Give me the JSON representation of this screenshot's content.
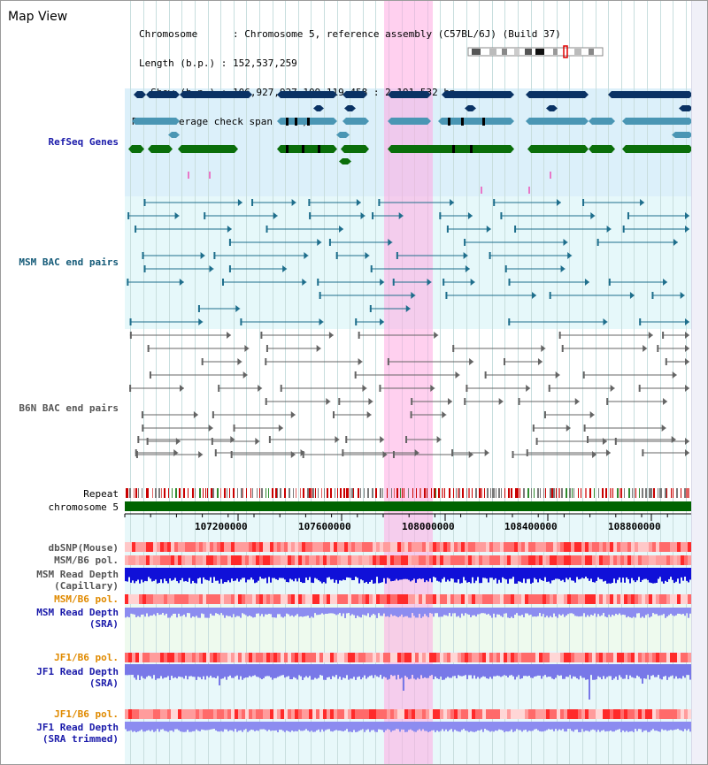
{
  "page": {
    "title": "Map View",
    "info_lines": [
      "Chromosome      : Chromosome 5, reference assembly (C57BL/6J) (Build 37)",
      "Length (b.p.) : 152,537,259",
      "  Show (b.p.) : 106,927,927-109,119,458 : 2,191,532 bp",
      "Read coverage check span : 10,000"
    ]
  },
  "tracks": {
    "refseq": "RefSeq Genes",
    "msm_bac": "MSM BAC end pairs",
    "b6n_bac": "B6N BAC end pairs",
    "repeat": "Repeat",
    "chromosome": "chromosome 5",
    "dbsnp": "dbSNP(Mouse)",
    "msm_b6_pol": "MSM/B6 pol.",
    "msm_read_depth_cap_1": "MSM Read Depth",
    "msm_read_depth_cap_2": "(Capillary)",
    "msm_b6_pol_2": "MSM/B6 pol.",
    "msm_read_depth_sra_1": "MSM Read Depth",
    "msm_read_depth_sra_2": "(SRA)",
    "jf1_b6_pol": "JF1/B6 pol.",
    "jf1_read_depth_sra_1": "JF1 Read Depth",
    "jf1_read_depth_sra_2": "(SRA)",
    "jf1_b6_pol_2": "JF1/B6 pol.",
    "jf1_read_depth_trim_1": "JF1 Read Depth",
    "jf1_read_depth_trim_2": "(SRA trimmed)"
  },
  "axis": {
    "ticks": [
      "107200000",
      "107600000",
      "108000000",
      "108400000",
      "108800000"
    ]
  },
  "colors": {
    "refseq_navy": "#0a3264",
    "refseq_blue": "#4a96b4",
    "refseq_green": "#0a6e0a",
    "msm_line": "#1e6e8c",
    "b6n_line": "#646464",
    "chromosome": "#006400",
    "highlight": "#ffaae1"
  }
}
